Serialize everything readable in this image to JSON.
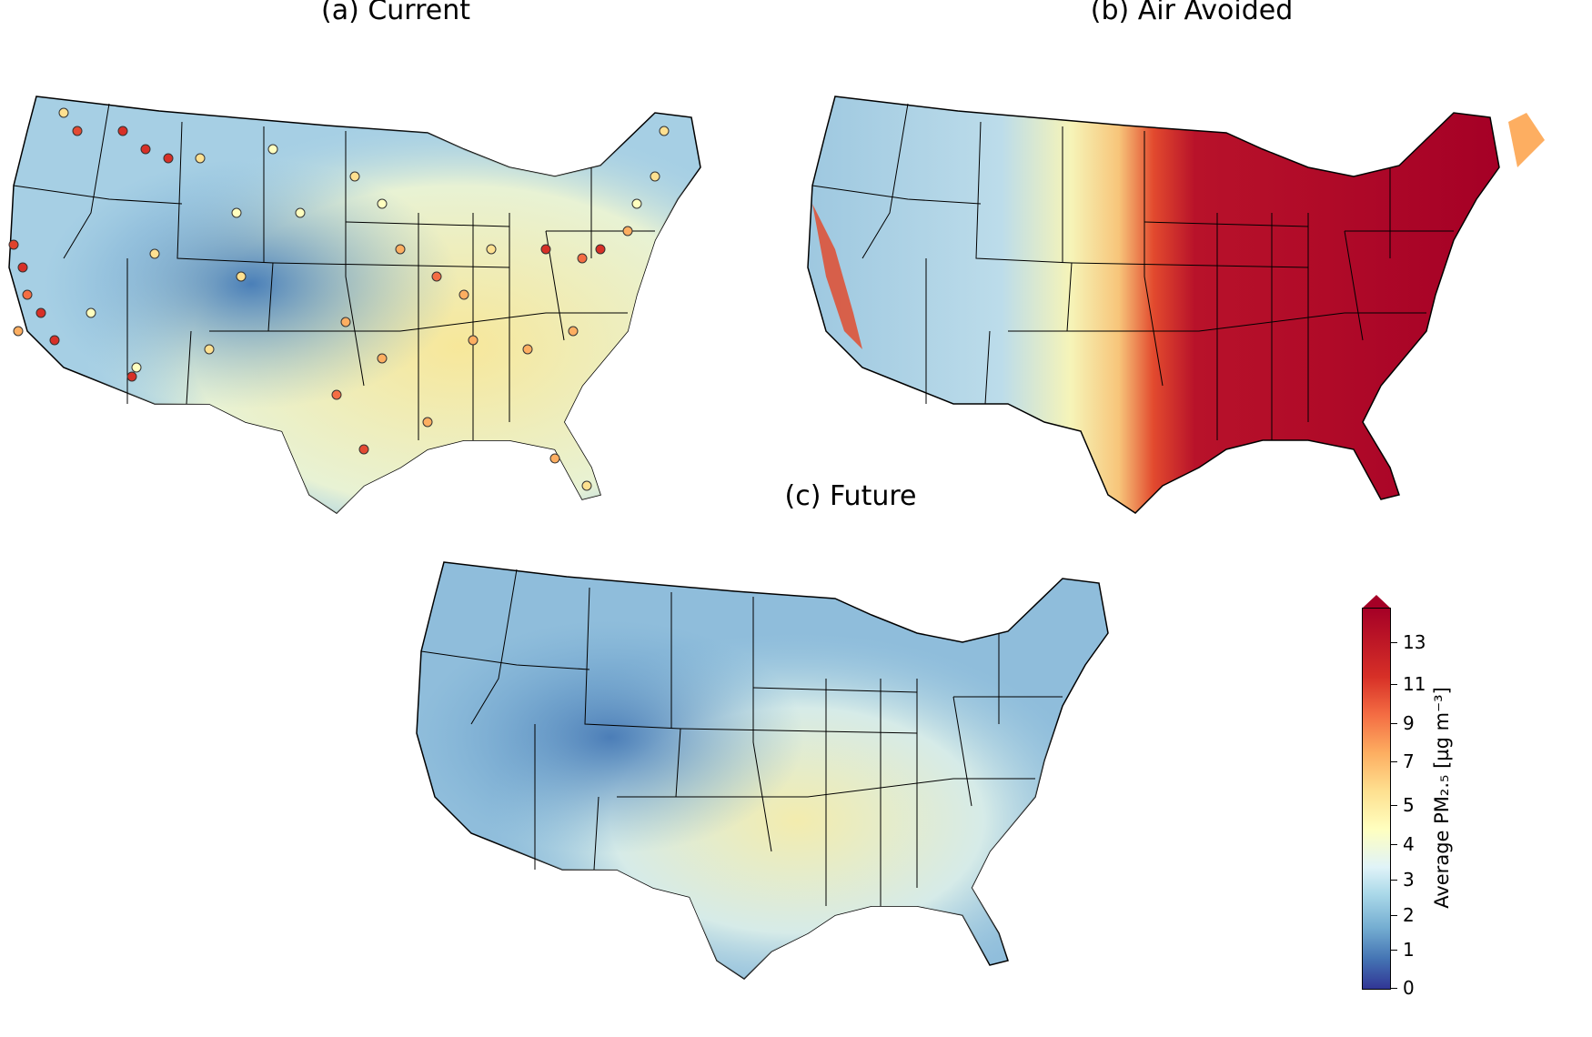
{
  "panels": {
    "a": {
      "title": "(a) Current"
    },
    "b": {
      "title": "(b) Air Avoided"
    },
    "c": {
      "title": "(c) Future"
    }
  },
  "colorbar": {
    "label": "Average PM₂.₅ [µg m⁻³]",
    "ticks": [
      "0",
      "1",
      "2",
      "3",
      "4",
      "5",
      "7",
      "9",
      "11",
      "13"
    ],
    "colormap": [
      "#313695",
      "#4575b4",
      "#74add1",
      "#abd9e9",
      "#e0f3f8",
      "#ffffbf",
      "#fee090",
      "#fdae61",
      "#f46d43",
      "#d73027",
      "#a50026"
    ]
  }
}
